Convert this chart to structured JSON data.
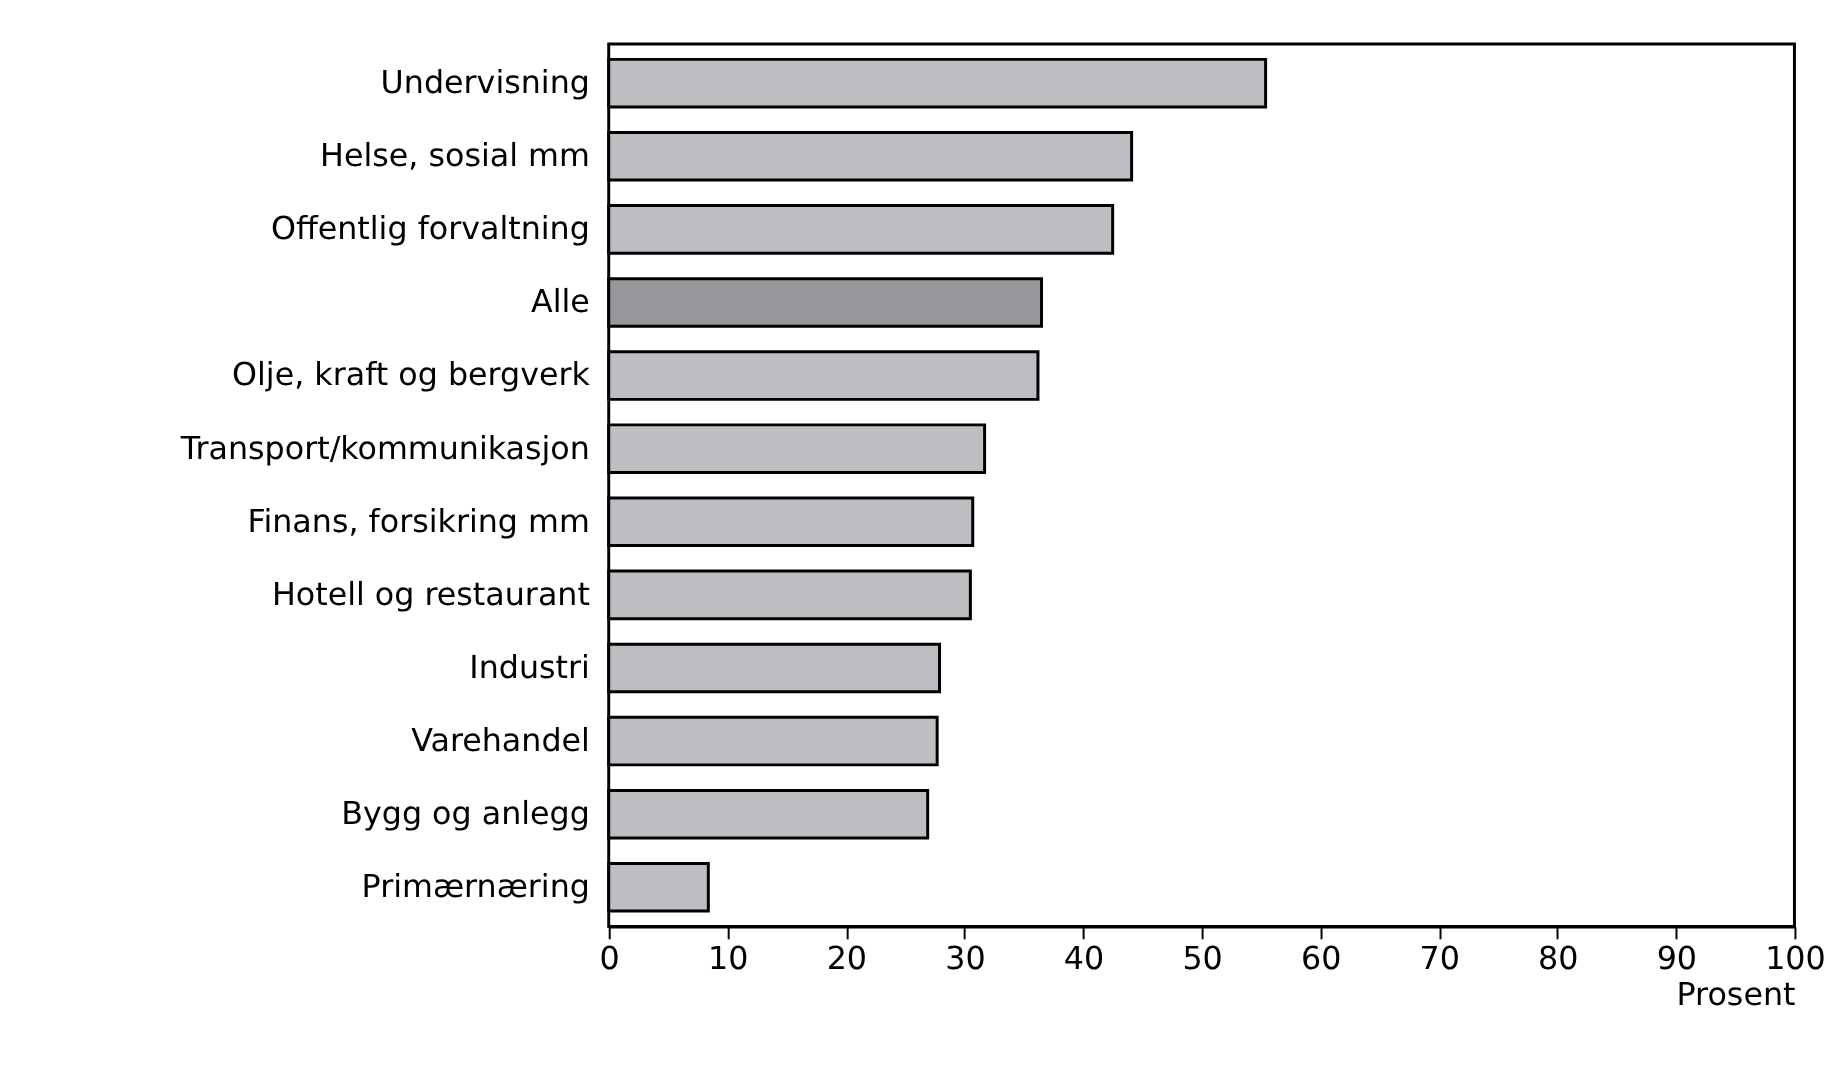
{
  "chart_data": {
    "type": "bar",
    "orientation": "horizontal",
    "categories": [
      "Undervisning",
      "Helse, sosial mm",
      "Offentlig forvaltning",
      "Alle",
      "Olje, kraft og bergverk",
      "Transport/kommunikasjon",
      "Finans, forsikring mm",
      "Hotell og restaurant",
      "Industri",
      "Varehandel",
      "Bygg og anlegg",
      "Primærnæring"
    ],
    "values": [
      55.4,
      44.1,
      42.5,
      36.5,
      36.2,
      31.7,
      30.7,
      30.5,
      27.9,
      27.7,
      26.9,
      8.4
    ],
    "colors": [
      "#bdbec2",
      "#bdbec2",
      "#bdbec2",
      "#96979b",
      "#bdbec2",
      "#bdbec2",
      "#bdbec2",
      "#bdbec2",
      "#bdbec2",
      "#bdbec2",
      "#bdbec2",
      "#bdbec2"
    ],
    "xlim": [
      0,
      100
    ],
    "xticks": [
      0,
      10,
      20,
      30,
      40,
      50,
      60,
      70,
      80,
      90,
      100
    ],
    "xlabel": "Prosent",
    "grid": false
  }
}
